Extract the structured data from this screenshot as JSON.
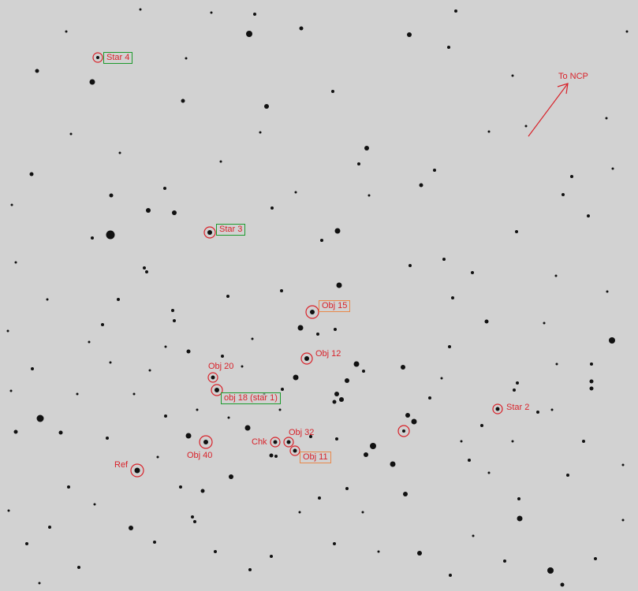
{
  "image": {
    "background_color": "#d2d2d2",
    "star_color": "#111111",
    "marker_color": "#d8222a",
    "comparison_box_color": "#1c9a2c",
    "target_box_color": "#e8884a"
  },
  "labels": {
    "star4": "Star 4",
    "star3": "Star 3",
    "star2": "Star 2",
    "obj15": "Obj 15",
    "obj12": "Obj 12",
    "obj20": "Obj 20",
    "obj18": "obj 18 (star 1)",
    "obj40": "Obj 40",
    "chk": "Chk",
    "obj32": "Obj 32",
    "obj11": "Obj 11",
    "ref": "Ref",
    "ncp": "To NCP"
  }
}
